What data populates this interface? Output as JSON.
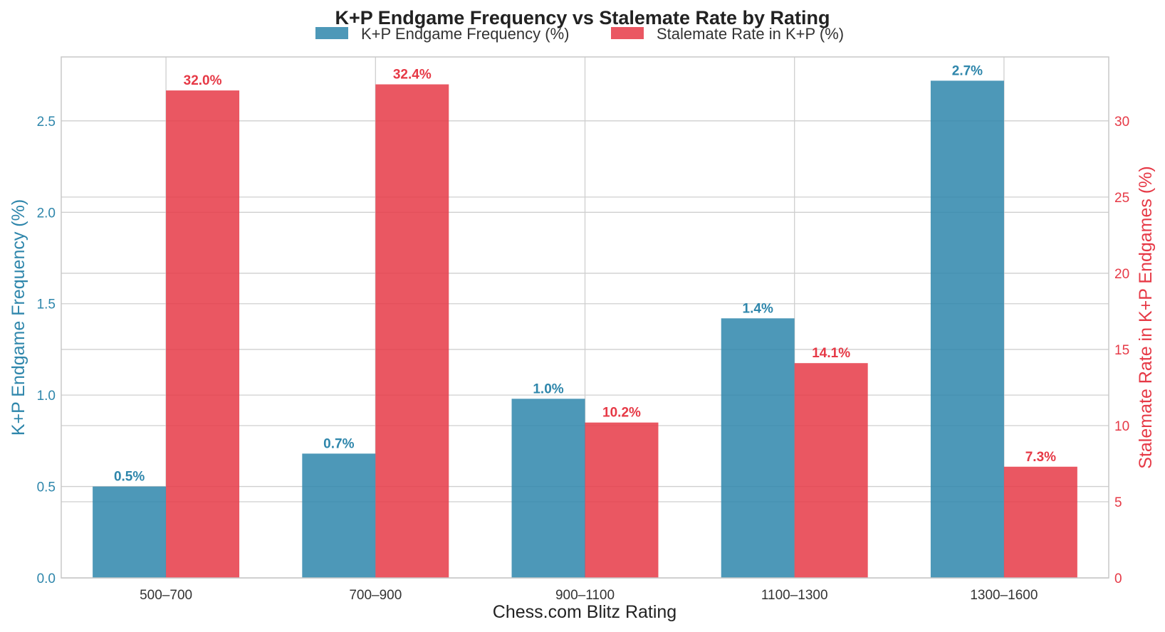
{
  "chart_data": {
    "type": "bar",
    "title": "K+P Endgame Frequency vs Stalemate Rate by Rating",
    "xlabel": "Chess.com Blitz Rating",
    "categories": [
      "500–700",
      "700–900",
      "900–1100",
      "1100–1300",
      "1300–1600"
    ],
    "series": [
      {
        "name": "K+P Endgame Frequency (%)",
        "axis": "left",
        "color": "#2E86AB",
        "values": [
          0.5,
          0.68,
          0.98,
          1.42,
          2.72
        ],
        "labels": [
          "0.5%",
          "0.7%",
          "1.0%",
          "1.4%",
          "2.7%"
        ]
      },
      {
        "name": "Stalemate Rate in K+P (%)",
        "axis": "right",
        "color": "#E63946",
        "values": [
          32.0,
          32.4,
          10.2,
          14.1,
          7.3
        ],
        "labels": [
          "32.0%",
          "32.4%",
          "10.2%",
          "14.1%",
          "7.3%"
        ]
      }
    ],
    "y_left": {
      "label": "K+P Endgame Frequency (%)",
      "ylim": [
        0,
        2.85
      ],
      "ticks": [
        0.0,
        0.5,
        1.0,
        1.5,
        2.0,
        2.5
      ],
      "tick_labels": [
        "0.0",
        "0.5",
        "1.0",
        "1.5",
        "2.0",
        "2.5"
      ],
      "color": "#2E86AB"
    },
    "y_right": {
      "label": "Stalemate Rate in K+P Endgames (%)",
      "ylim": [
        0,
        34.2
      ],
      "ticks": [
        0,
        5,
        10,
        15,
        20,
        25,
        30
      ],
      "tick_labels": [
        "0",
        "5",
        "10",
        "15",
        "20",
        "25",
        "30"
      ],
      "color": "#E63946"
    },
    "grid": true,
    "legend": "top-center"
  }
}
